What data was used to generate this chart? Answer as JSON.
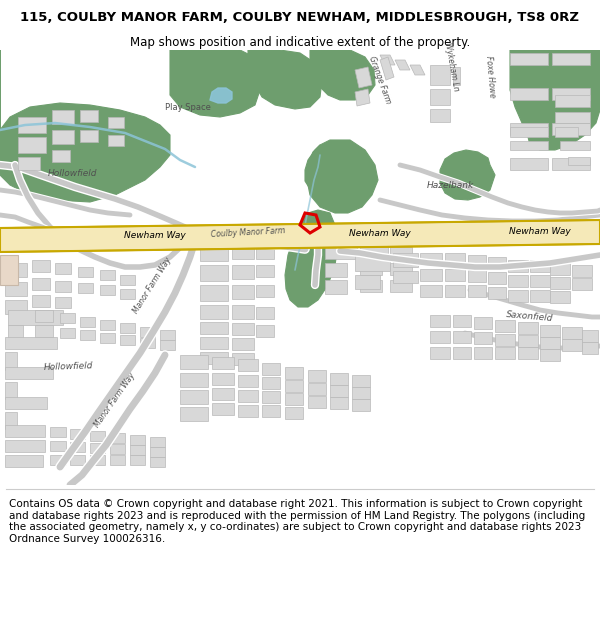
{
  "title_line1": "115, COULBY MANOR FARM, COULBY NEWHAM, MIDDLESBROUGH, TS8 0RZ",
  "title_line2": "Map shows position and indicative extent of the property.",
  "footer": "Contains OS data © Crown copyright and database right 2021. This information is subject to Crown copyright and database rights 2023 and is reproduced with the permission of HM Land Registry. The polygons (including the associated geometry, namely x, y co-ordinates) are subject to Crown copyright and database rights 2023 Ordnance Survey 100026316.",
  "title_fontsize": 9.5,
  "subtitle_fontsize": 8.5,
  "footer_fontsize": 7.5,
  "map_bg": "#f8f8f8",
  "green_dark": "#6e9e6e",
  "green_light": "#a8c8a0",
  "green_pale": "#c8ddc0",
  "road_yellow_fill": "#f5e9b8",
  "road_yellow_edge": "#c8a800",
  "building_color": "#d8d8d8",
  "building_edge": "#b8b8b8",
  "water_blue": "#8cc4d8",
  "plot_red": "#dd0000",
  "road_white": "#ffffff",
  "road_gray": "#c8c8c8",
  "label_gray": "#505050"
}
